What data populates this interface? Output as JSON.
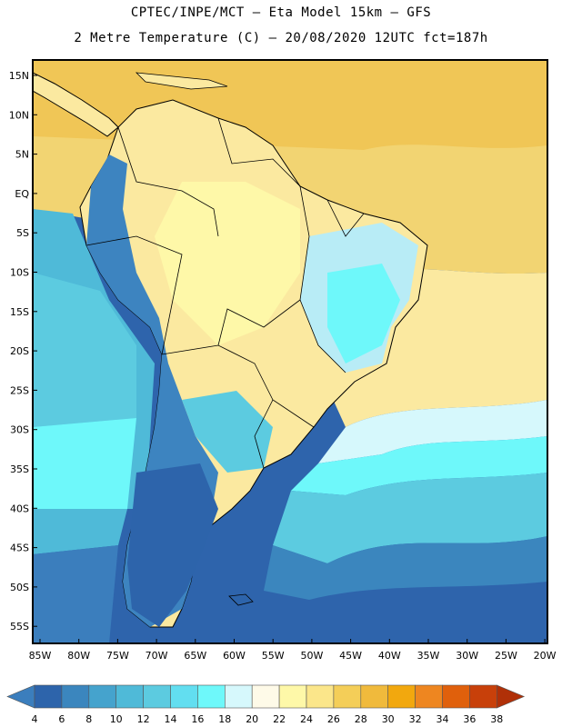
{
  "header": {
    "line1": "CPTEC/INPE/MCT –  Eta Model 15km – GFS",
    "line2": "2 Metre Temperature (C) – 20/08/2020 12UTC fct=187h"
  },
  "map": {
    "lat_labels": [
      "15N",
      "10N",
      "5N",
      "EQ",
      "5S",
      "10S",
      "15S",
      "20S",
      "25S",
      "30S",
      "35S",
      "40S",
      "45S",
      "50S",
      "55S"
    ],
    "lon_labels": [
      "85W",
      "80W",
      "75W",
      "70W",
      "65W",
      "60W",
      "55W",
      "50W",
      "45W",
      "40W",
      "35W",
      "30W",
      "25W",
      "20W"
    ],
    "colors": {
      "ocean_cold": "#2e64ac",
      "ocean_mid": "#4fc0dc",
      "ocean_cyan": "#5de2ec",
      "tropical_warm": "#f2d472",
      "tropical_hot": "#f0c050",
      "land_warm": "#fbe9a0",
      "land_cool": "#b8ecf6",
      "andes_cold": "#3d84c0"
    }
  },
  "colorbar": {
    "ticks": [
      "4",
      "6",
      "8",
      "10",
      "12",
      "14",
      "16",
      "18",
      "20",
      "22",
      "24",
      "26",
      "28",
      "30",
      "32",
      "34",
      "36",
      "38"
    ],
    "colors": [
      "#3b7ebd",
      "#2d64ab",
      "#3b86be",
      "#45a3cd",
      "#4fbad8",
      "#5ccbe0",
      "#62def0",
      "#6ef8fa",
      "#d6f8fc",
      "#fefae8",
      "#fef8a8",
      "#fbe68a",
      "#f4ce58",
      "#f0ba3c",
      "#f2a80e",
      "#ee8620",
      "#e0600c",
      "#c8400a",
      "#b03008"
    ]
  }
}
